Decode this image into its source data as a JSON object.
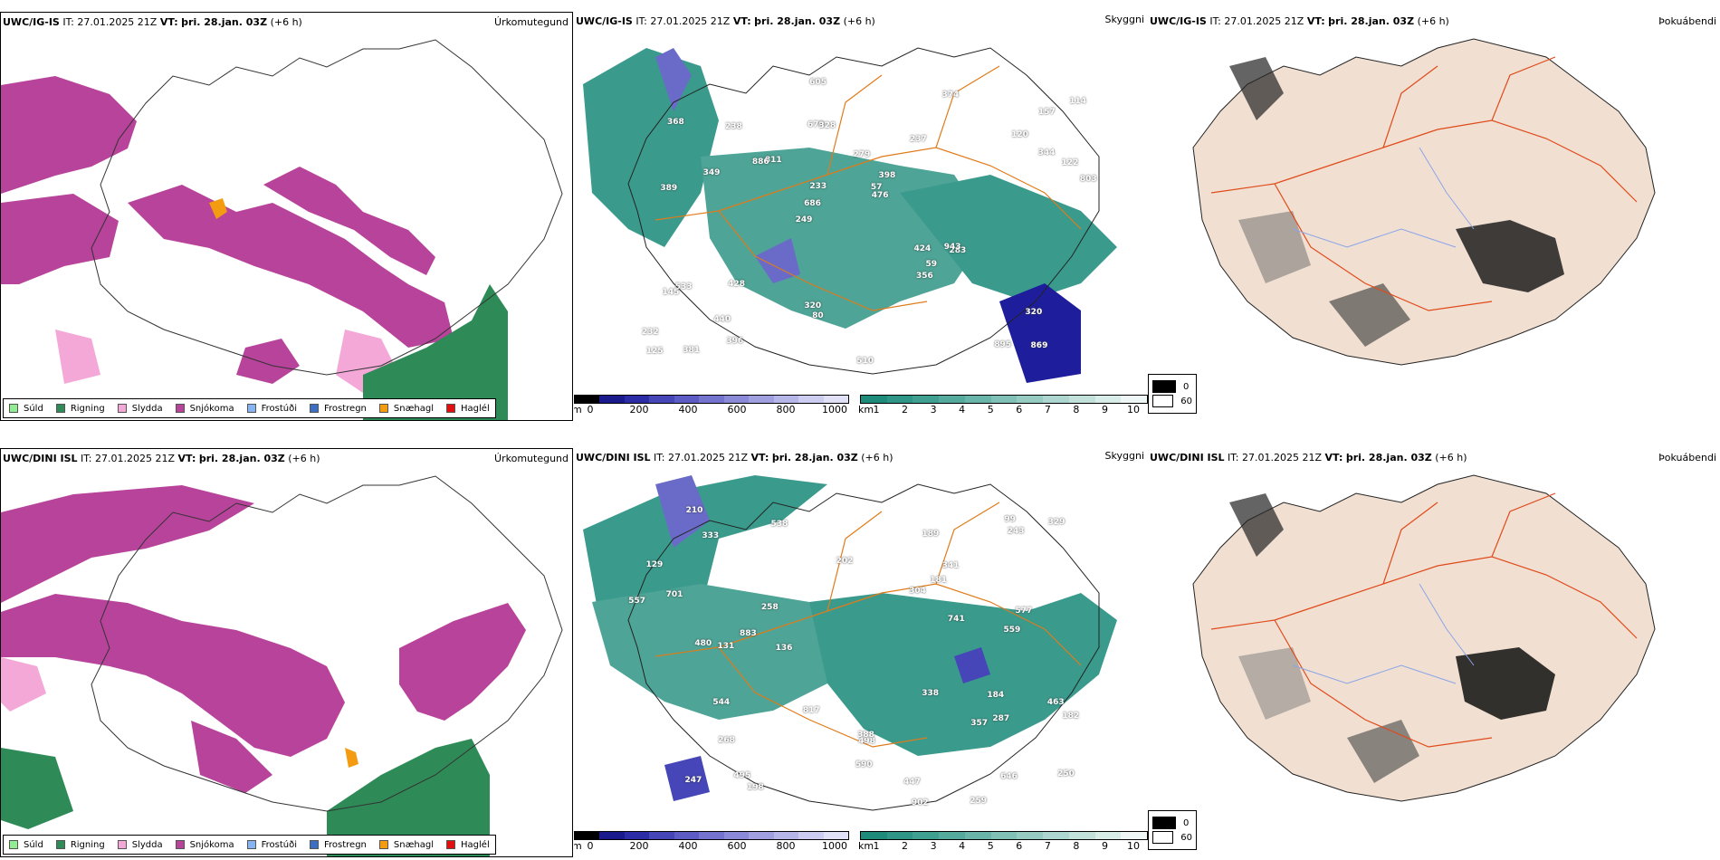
{
  "rows": [
    {
      "model": "UWC/IG-IS",
      "it_label": "IT:",
      "it_value": "27.01.2025 21Z",
      "vt_label": "VT:",
      "vt_value": "þri. 28.jan. 03Z",
      "lead": "(+6 h)"
    },
    {
      "model": "UWC/DINI ISL",
      "it_label": "IT:",
      "it_value": "27.01.2025 21Z",
      "vt_label": "VT:",
      "vt_value": "þri. 28.jan. 03Z",
      "lead": "(+6 h)"
    }
  ],
  "panel_titles": {
    "precip_type": "Úrkomutegund",
    "visibility": "Skyggni",
    "fog_risk": "Þokuábendi"
  },
  "precip_legend": [
    {
      "label": "Súld",
      "color": "#90ee90"
    },
    {
      "label": "Rigning",
      "color": "#2e8b57"
    },
    {
      "label": "Slydda",
      "color": "#f4a8d8"
    },
    {
      "label": "Snjókoma",
      "color": "#b8439a"
    },
    {
      "label": "Frostúði",
      "color": "#87b4f0"
    },
    {
      "label": "Frostregn",
      "color": "#3a6fc4"
    },
    {
      "label": "Snæhagl",
      "color": "#f39c12"
    },
    {
      "label": "Haglél",
      "color": "#e01010"
    }
  ],
  "height_bar": {
    "unit": "m",
    "ticks": [
      "0",
      "200",
      "400",
      "600",
      "800",
      "1000"
    ],
    "colors": [
      "#000000",
      "#1a1a8c",
      "#2c2ca6",
      "#4646b8",
      "#5c5cc4",
      "#7474cf",
      "#8a8ad8",
      "#a0a0e0",
      "#b6b6e8",
      "#cccdf0",
      "#e0e0f7"
    ]
  },
  "vis_bar": {
    "unit": "km",
    "ticks": [
      "1",
      "2",
      "3",
      "4",
      "5",
      "6",
      "7",
      "8",
      "9",
      "10"
    ],
    "colors": [
      "#1e8a7a",
      "#2f9586",
      "#3f9f91",
      "#54aa9d",
      "#6ab5aa",
      "#80c0b6",
      "#96cbc2",
      "#acd6cf",
      "#c2e1db",
      "#d8ece8",
      "#eef7f5"
    ]
  },
  "cloud_legend": {
    "items": [
      {
        "label": "0",
        "color": "#000000"
      },
      {
        "label": "60",
        "color": "#ffffff"
      }
    ]
  },
  "height_values_top": [
    "869",
    "389",
    "157",
    "249",
    "237",
    "381",
    "670",
    "279",
    "533",
    "811",
    "232",
    "440",
    "328",
    "398",
    "283",
    "368",
    "605",
    "803",
    "424",
    "344",
    "686",
    "320",
    "233",
    "238",
    "374",
    "428",
    "895",
    "320",
    "943",
    "510",
    "886",
    "349",
    "356",
    "396",
    "122",
    "57",
    "125",
    "80",
    "476",
    "145",
    "120",
    "114",
    "59"
  ],
  "height_values_bottom": [
    "463",
    "259",
    "498",
    "247",
    "388",
    "258",
    "538",
    "341",
    "902",
    "559",
    "338",
    "243",
    "557",
    "741",
    "198",
    "333",
    "268",
    "495",
    "189",
    "202",
    "701",
    "184",
    "646",
    "480",
    "329",
    "304",
    "357",
    "817",
    "544",
    "883",
    "590",
    "577",
    "250",
    "447",
    "182",
    "131",
    "129",
    "99",
    "136",
    "210",
    "287",
    "181"
  ]
}
